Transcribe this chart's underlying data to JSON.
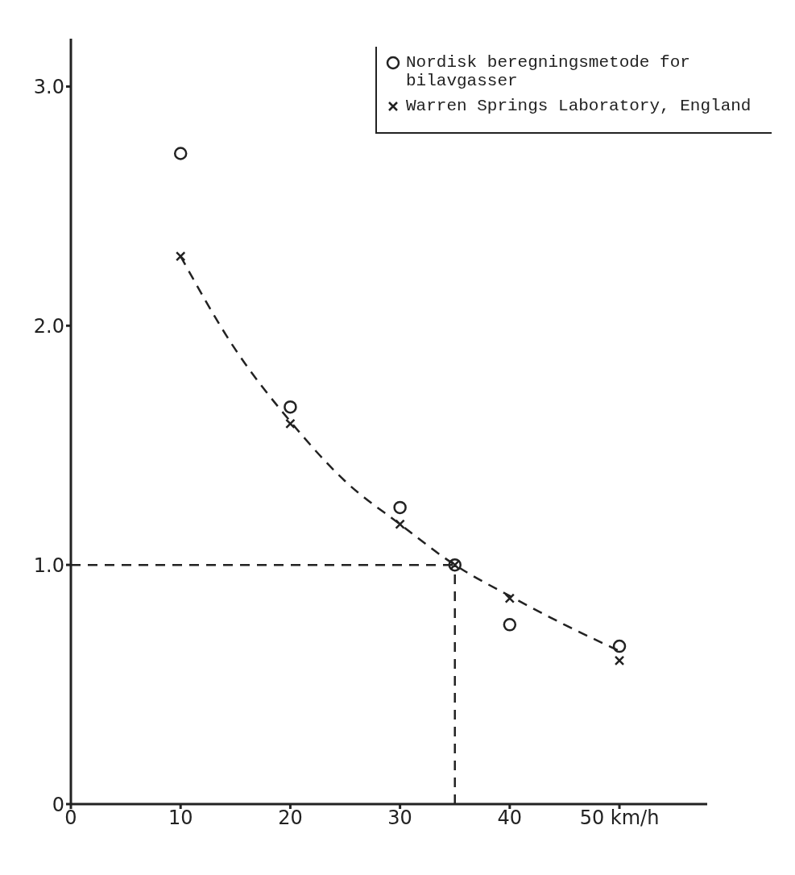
{
  "chart_data": {
    "type": "scatter",
    "xlim": [
      0,
      58
    ],
    "xticks": [
      0,
      10,
      20,
      30,
      40,
      {
        "value": 50,
        "label": "50 km/h"
      }
    ],
    "ylim": [
      0,
      3.2
    ],
    "yticks": [
      0,
      {
        "value": 1,
        "label": "1.0"
      },
      {
        "value": 2,
        "label": "2.0"
      },
      {
        "value": 3,
        "label": "3.0"
      }
    ],
    "grid": false,
    "legend": "top right",
    "series": [
      {
        "name": "Nordisk beregningsmetode for bilavgasser",
        "marker": "circle",
        "color": "#222222",
        "x": [
          10,
          20,
          30,
          35,
          40,
          50
        ],
        "values": [
          2.72,
          1.66,
          1.24,
          1.0,
          0.75,
          0.66
        ]
      },
      {
        "name": "Warren Springs Laboratory, England",
        "marker": "cross",
        "color": "#222222",
        "x": [
          10,
          20,
          30,
          35,
          40,
          50
        ],
        "values": [
          2.29,
          1.59,
          1.17,
          1.0,
          0.86,
          0.6
        ]
      },
      {
        "type": "line",
        "line_style": "dashed",
        "marker": "none",
        "color": "#222222",
        "x": [
          10,
          15,
          20,
          25,
          30,
          35,
          40,
          45,
          50
        ],
        "values": [
          2.29,
          1.9,
          1.6,
          1.35,
          1.17,
          1.0,
          0.87,
          0.75,
          0.64
        ]
      }
    ],
    "ref_lines": [
      {
        "axis": "y",
        "value": 1.0,
        "line_style": "dashed",
        "color": "#222222"
      },
      {
        "axis": "x",
        "value": 35,
        "line_style": "dashed",
        "color": "#222222"
      }
    ]
  }
}
